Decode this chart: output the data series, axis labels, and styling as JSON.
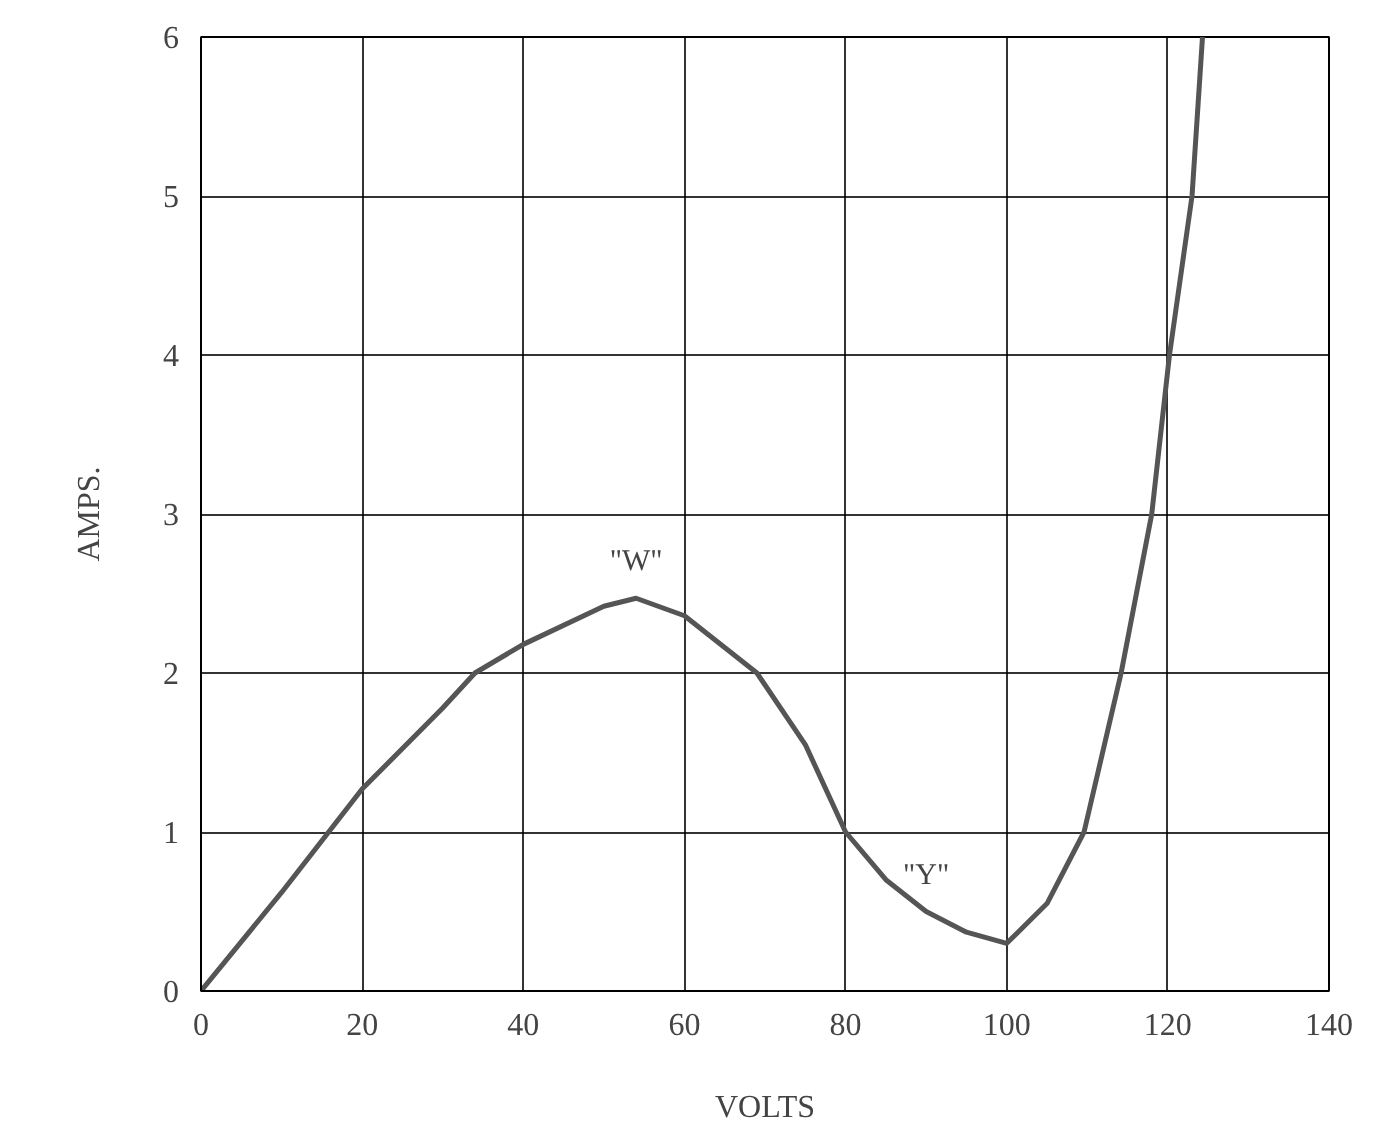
{
  "chart_data": {
    "type": "line",
    "xlabel": "VOLTS",
    "ylabel": "AMPS.",
    "x": [
      0,
      10,
      20,
      30,
      34,
      40,
      50,
      54,
      60,
      69,
      75,
      80,
      85,
      90,
      95,
      100,
      105,
      109.6,
      114.2,
      118,
      120.2,
      123,
      124.3
    ],
    "series": [
      {
        "color": "#555555",
        "values": [
          0,
          0.62,
          1.27,
          1.78,
          2.0,
          2.18,
          2.42,
          2.47,
          2.36,
          2.0,
          1.55,
          1.0,
          0.7,
          0.5,
          0.37,
          0.3,
          0.55,
          1.0,
          2.0,
          3.0,
          4.0,
          5.0,
          6.0
        ]
      }
    ],
    "xlim": [
      0,
      140
    ],
    "ylim": [
      0,
      6
    ],
    "xticks": [
      0,
      20,
      40,
      60,
      80,
      100,
      120,
      140
    ],
    "yticks": [
      0,
      1,
      2,
      3,
      4,
      5,
      6
    ],
    "grid": true,
    "marker": "none",
    "line_style": "solid",
    "annotations": [
      {
        "text": "\"W\"",
        "x": 54,
        "y": 2.47
      },
      {
        "text": "\"Y\"",
        "x": 90,
        "y": 0.5
      }
    ]
  }
}
